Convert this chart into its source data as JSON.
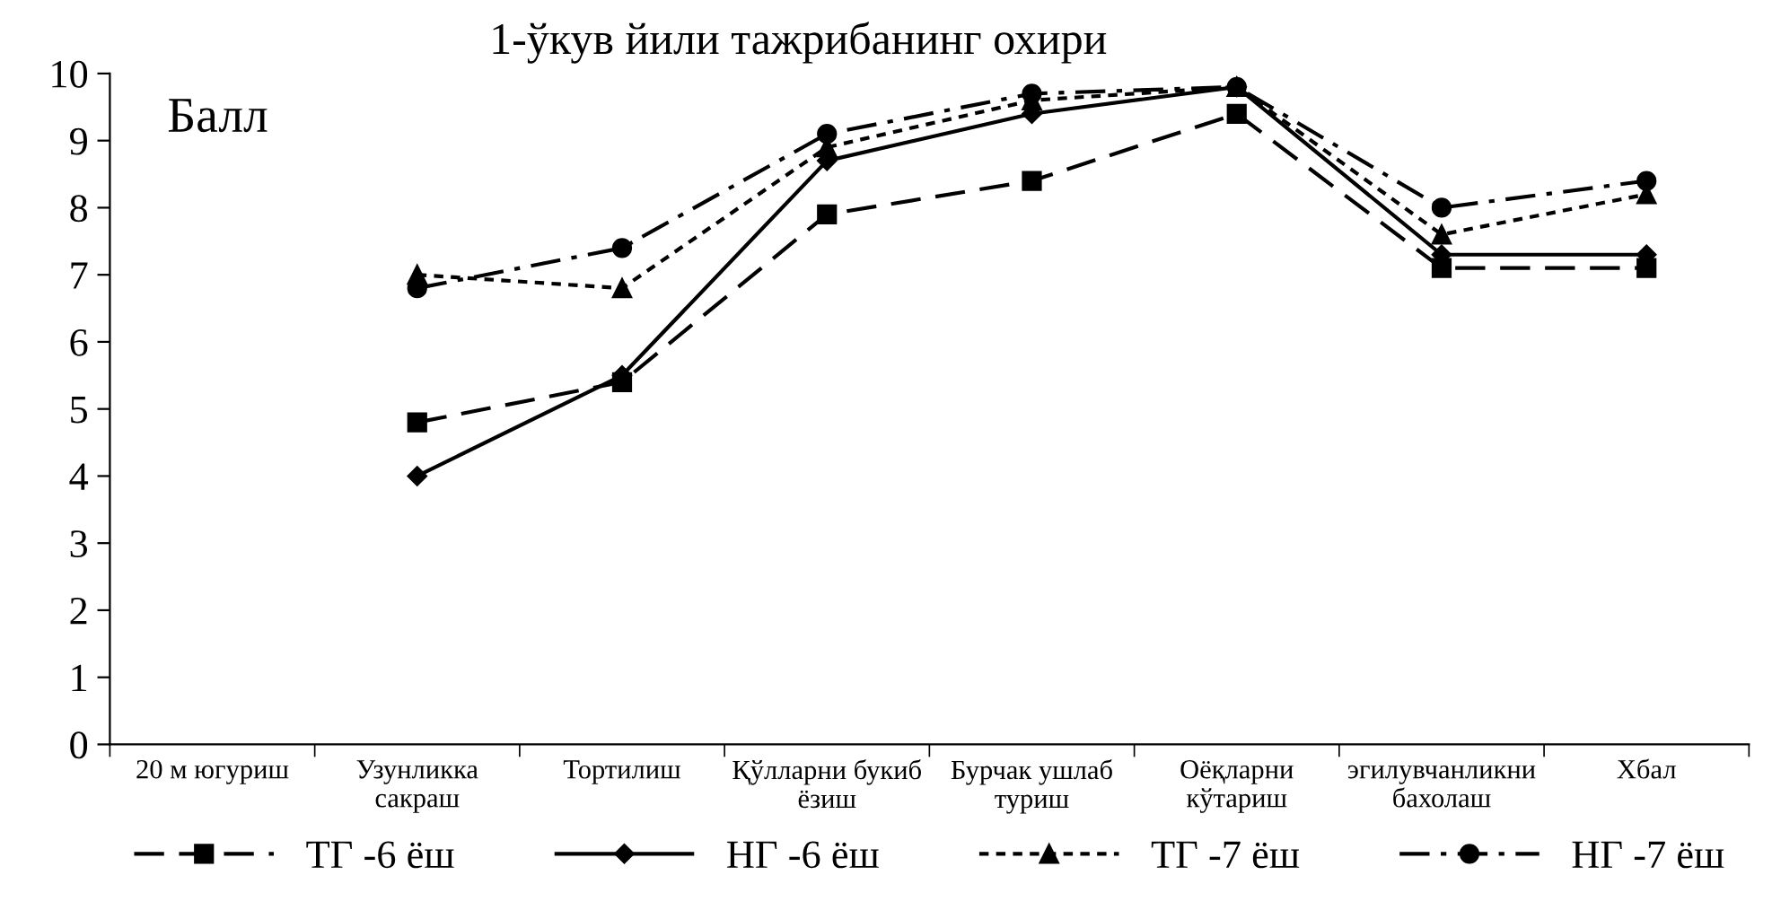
{
  "chart_data": {
    "type": "line",
    "title": "1-ўкув йили тажрибанинг охири",
    "ylabel": "Балл",
    "categories": [
      "20 м югуриш",
      "Узунликка\nсакраш",
      "Тортилиш",
      "Қўлларни букиб\nёзиш",
      "Бурчак ушлаб\nтуриш",
      "Оёқларни\nкўтариш",
      "эгилувчанликни\nбахолаш",
      "Хбал"
    ],
    "series": [
      {
        "name": "ТГ -6 ёш",
        "color": "#000000",
        "marker": "square",
        "line_style": "dashed",
        "values": [
          null,
          4.8,
          5.4,
          7.9,
          8.4,
          9.4,
          7.1,
          7.1
        ]
      },
      {
        "name": "НГ -6 ёш",
        "color": "#000000",
        "marker": "diamond",
        "line_style": "solid",
        "values": [
          null,
          4.0,
          5.5,
          8.7,
          9.4,
          9.8,
          7.3,
          7.3
        ]
      },
      {
        "name": "ТГ -7 ёш",
        "color": "#000000",
        "marker": "triangle",
        "line_style": "dotted",
        "values": [
          null,
          7.0,
          6.8,
          8.9,
          9.6,
          9.8,
          7.6,
          8.2
        ]
      },
      {
        "name": "НГ -7 ёш",
        "color": "#000000",
        "marker": "circle",
        "line_style": "dashdot",
        "values": [
          null,
          6.8,
          7.4,
          9.1,
          9.7,
          9.8,
          8.0,
          8.4
        ]
      }
    ],
    "ylim": [
      0,
      10
    ],
    "yticks": [
      0,
      1,
      2,
      3,
      4,
      5,
      6,
      7,
      8,
      9,
      10
    ],
    "grid": false,
    "legend": "bottom"
  }
}
